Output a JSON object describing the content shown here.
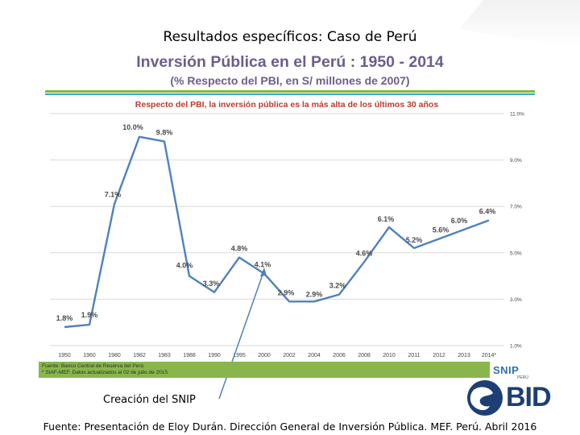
{
  "slide": {
    "title": "Resultados específicos: Caso de Perú",
    "annotation": "Creación del SNIP",
    "footer": "Fuente: Presentación de Eloy Durán. Dirección General de Inversión Pública. MEF. Perú. Abril 2016"
  },
  "chart_data": {
    "type": "line",
    "title": "Inversión Pública en el Perú : 1950 - 2014",
    "subtitle": "(% Respecto del PBI, en S/ millones de 2007)",
    "headline": "Respecto del PBI, la inversión pública es la más alta de los últimos 30 años",
    "categories": [
      "1950",
      "1960",
      "1980",
      "1982",
      "1983",
      "1988",
      "1990",
      "1995",
      "2000",
      "2002",
      "2004",
      "2006",
      "2008",
      "2010",
      "2011",
      "2012",
      "2013",
      "2014*"
    ],
    "series": [
      {
        "values": [
          1.8,
          1.9,
          7.1,
          10.0,
          9.8,
          4.0,
          3.3,
          4.8,
          4.1,
          2.9,
          2.9,
          3.2,
          4.6,
          6.1,
          5.2,
          5.6,
          6.0,
          6.4
        ],
        "labels": [
          "1.8%",
          "1.9%",
          "7.1%",
          "10.0%",
          "9.8%",
          "4.0%",
          "3.3%",
          "4.8%",
          "4.1%",
          "2.9%",
          "2.9%",
          "3.2%",
          "4.6%",
          "6.1%",
          "5.2%",
          "5.6%",
          "6.0%",
          "6.4%"
        ]
      }
    ],
    "y_axis_ticks": [
      "1.0%",
      "3.0%",
      "5.0%",
      "7.0%",
      "9.0%",
      "11.0%"
    ],
    "ylim": [
      1.0,
      11.0
    ],
    "y_axis_side": "right",
    "grid": true,
    "colors": {
      "line": "#4f81bd",
      "headline": "#c0392b",
      "title": "#6d5d8e",
      "source_band": "#88b64c"
    },
    "source_lines": [
      "Fuente: Banco Central de Reserva del Perú",
      "* SIAF-MEF. Datos actualizados al 02 de julio de 2015"
    ]
  },
  "logos": {
    "snip": "SNIP",
    "snip_sub": "PERÚ",
    "bid": "BID"
  }
}
